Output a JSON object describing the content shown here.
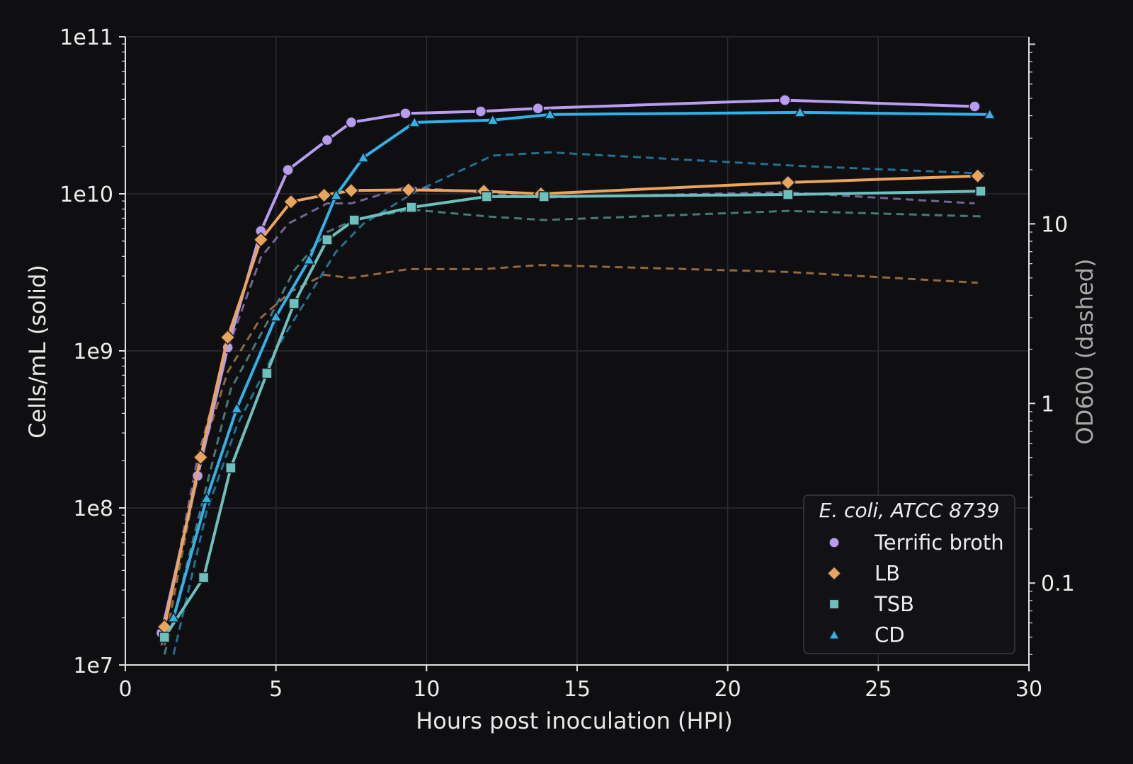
{
  "chart_data": {
    "type": "line",
    "xlabel": "Hours post inoculation (HPI)",
    "ylabel": "Cells/mL  (solid)",
    "ylabel_right": "OD600  (dashed)",
    "xlim": [
      0,
      30
    ],
    "ylim": [
      10000000.0,
      100000000000.0
    ],
    "yscale": "log",
    "ylim_right": [
      0.035,
      110
    ],
    "yscale_right": "log",
    "x_ticks": [
      "0",
      "5",
      "10",
      "15",
      "20",
      "25",
      "30"
    ],
    "y_ticks": [
      "1e7",
      "1e8",
      "1e9",
      "1e10",
      "1e11"
    ],
    "y_right_ticks": [
      "0.1",
      "1",
      "10"
    ],
    "grid": true,
    "legend_title": "E. coli, ATCC 8739",
    "legend_position": "lower-right",
    "series": [
      {
        "name": "Terrific broth",
        "color": "#b89cf0",
        "marker": "circle",
        "x": [
          1.2,
          2.4,
          3.4,
          4.5,
          5.4,
          6.7,
          7.5,
          9.3,
          11.8,
          13.7,
          21.9,
          28.2
        ],
        "y": [
          16000000.0,
          160000000.0,
          1050000000.0,
          5800000000.0,
          14200000000.0,
          22000000000.0,
          28500000000.0,
          32500000000.0,
          33500000000.0,
          35000000000.0,
          39500000000.0,
          36000000000.0
        ],
        "od_x": [
          1.2,
          2.4,
          3.4,
          4.5,
          5.4,
          6.7,
          7.5,
          9.3,
          11.8,
          13.7,
          21.9,
          28.2
        ],
        "od_y": [
          0.045,
          0.5,
          2.0,
          6.5,
          10.0,
          13.0,
          13.0,
          16.0,
          15.0,
          14.0,
          15.0,
          13.0
        ]
      },
      {
        "name": "LB",
        "color": "#eba45c",
        "marker": "diamond",
        "x": [
          1.3,
          2.5,
          3.4,
          4.5,
          5.5,
          6.6,
          7.5,
          9.4,
          11.9,
          13.8,
          22.0,
          28.3
        ],
        "y": [
          17500000.0,
          210000000.0,
          1220000000.0,
          5100000000.0,
          8900000000.0,
          9800000000.0,
          10500000000.0,
          10600000000.0,
          10400000000.0,
          10000000000.0,
          11800000000.0,
          13000000000.0
        ],
        "od_x": [
          1.3,
          2.5,
          3.4,
          4.5,
          5.5,
          6.6,
          7.5,
          9.4,
          11.9,
          13.8,
          22.0,
          28.3
        ],
        "od_y": [
          0.045,
          0.5,
          1.5,
          3.0,
          4.2,
          5.2,
          5.0,
          5.6,
          5.6,
          5.9,
          5.4,
          4.7
        ]
      },
      {
        "name": "TSB",
        "color": "#6cc0bd",
        "marker": "square",
        "x": [
          1.3,
          2.6,
          3.5,
          4.7,
          5.6,
          6.7,
          7.6,
          9.5,
          12.0,
          13.9,
          22.0,
          28.4
        ],
        "y": [
          15000000.0,
          36000000.0,
          180000000.0,
          720000000.0,
          2000000000.0,
          5100000000.0,
          6800000000.0,
          8200000000.0,
          9600000000.0,
          9600000000.0,
          9900000000.0,
          10400000000.0
        ],
        "od_x": [
          1.3,
          2.6,
          3.5,
          4.7,
          5.6,
          6.7,
          7.6,
          9.5,
          12.0,
          13.9,
          22.0,
          28.4
        ],
        "od_y": [
          0.04,
          0.3,
          1.2,
          2.8,
          5.5,
          9.0,
          10.5,
          12.0,
          11.0,
          10.5,
          11.8,
          11.0
        ]
      },
      {
        "name": "CD",
        "color": "#2eb2e8",
        "marker": "triangle",
        "x": [
          1.6,
          2.7,
          3.7,
          5.0,
          6.1,
          7.0,
          7.9,
          9.6,
          12.2,
          14.1,
          22.4,
          28.7
        ],
        "y": [
          20000000.0,
          115000000.0,
          430000000.0,
          1650000000.0,
          3800000000.0,
          9800000000.0,
          17000000000.0,
          28500000000.0,
          29500000000.0,
          32000000000.0,
          33000000000.0,
          32000000000.0
        ],
        "od_x": [
          1.6,
          2.7,
          3.7,
          5.0,
          6.1,
          7.0,
          7.9,
          9.6,
          12.2,
          14.1,
          22.4,
          28.7
        ],
        "od_y": [
          0.04,
          0.25,
          0.75,
          2.0,
          4.0,
          7.0,
          10.0,
          15.0,
          24.0,
          25.0,
          21.0,
          19.0
        ]
      }
    ]
  }
}
